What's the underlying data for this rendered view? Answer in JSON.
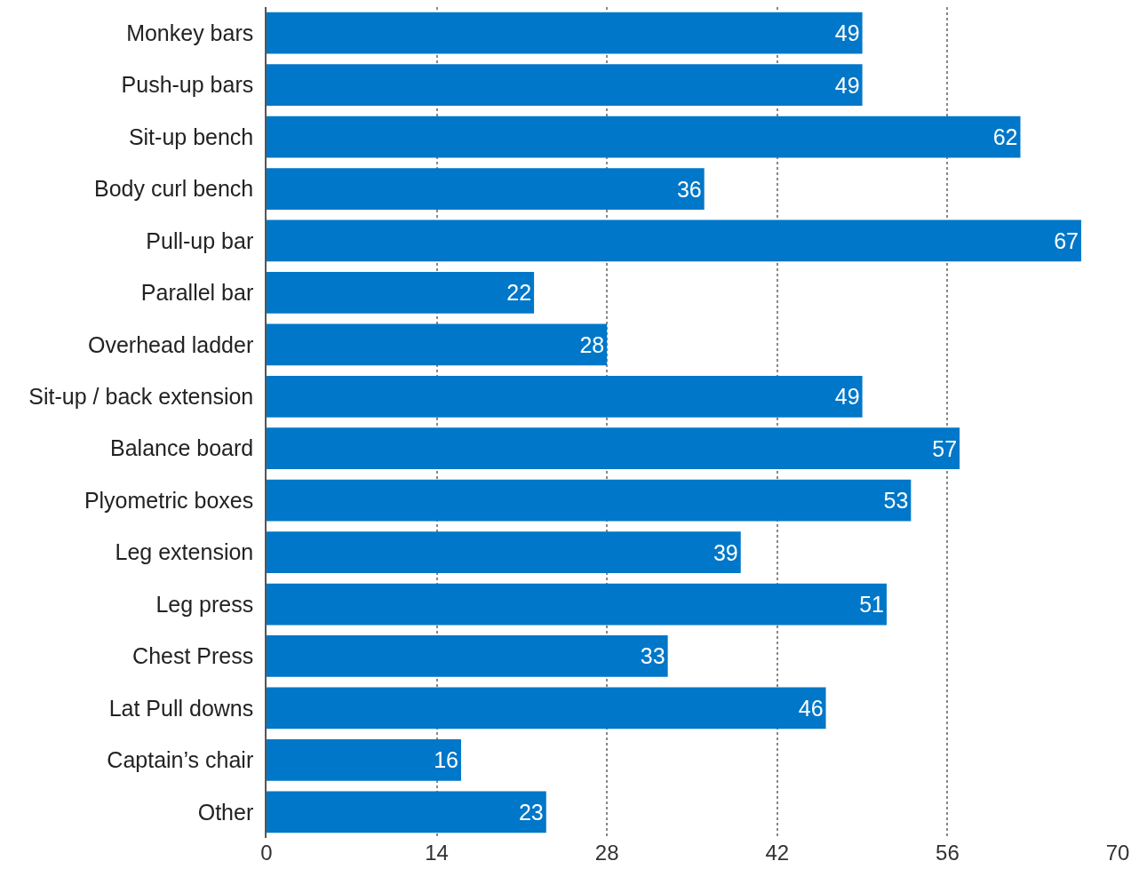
{
  "chart_data": {
    "type": "bar",
    "orientation": "horizontal",
    "categories": [
      "Monkey bars",
      "Push-up bars",
      "Sit-up bench",
      "Body curl bench",
      "Pull-up bar",
      "Parallel bar",
      "Overhead ladder",
      "Sit-up / back extension",
      "Balance board",
      "Plyometric boxes",
      "Leg extension",
      "Leg press",
      "Chest Press",
      "Lat Pull downs",
      "Captain’s chair",
      "Other"
    ],
    "values": [
      49,
      49,
      62,
      36,
      67,
      22,
      28,
      49,
      57,
      53,
      39,
      51,
      33,
      46,
      16,
      23
    ],
    "color": "#0077c8",
    "xlim": [
      0,
      70
    ],
    "xticks": [
      0,
      14,
      28,
      42,
      56,
      70
    ],
    "grid": "x",
    "data_labels": true,
    "legend": false
  }
}
